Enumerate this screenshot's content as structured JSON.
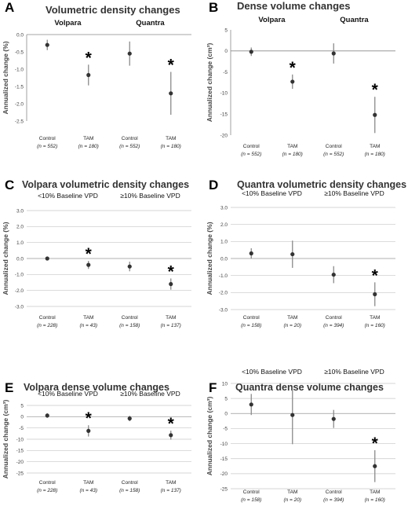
{
  "chart_data": [
    {
      "letter": "A",
      "title": "Volumetric density changes",
      "type": "scatter",
      "ylabel": "Annualized change (%)",
      "ylim": [
        -2.5,
        0
      ],
      "yticks": [
        "0.0",
        "-0.5",
        "-1.0",
        "-1.5",
        "-2.0",
        "-2.5"
      ],
      "grid": false,
      "group_labels": [
        "Volpara",
        "Quantra"
      ],
      "group_labels_bold": true,
      "categories": [
        "Control",
        "TAM",
        "Control",
        "TAM"
      ],
      "n_labels": [
        "(n = 552)",
        "(n = 180)",
        "(n = 552)",
        "(n = 180)"
      ],
      "values": [
        -0.3,
        -1.17,
        -0.55,
        -1.7
      ],
      "ci_low": [
        -0.45,
        -1.47,
        -0.9,
        -2.32
      ],
      "ci_high": [
        -0.15,
        -0.87,
        -0.2,
        -1.08
      ],
      "significant": [
        false,
        true,
        false,
        true
      ]
    },
    {
      "letter": "B",
      "title": "Dense volume changes",
      "type": "scatter",
      "ylabel": "Annualized change (cm³)",
      "ylim": [
        -20,
        5
      ],
      "yticks": [
        "5",
        "0",
        "-5",
        "-10",
        "-15",
        "-20"
      ],
      "grid": false,
      "group_labels": [
        "Volpara",
        "Quantra"
      ],
      "group_labels_bold": true,
      "categories": [
        "Control",
        "TAM",
        "Control",
        "TAM"
      ],
      "n_labels": [
        "(n = 552)",
        "(n = 180)",
        "(n = 552)",
        "(n = 180)"
      ],
      "values": [
        -0.2,
        -7.3,
        -0.6,
        -15.2
      ],
      "ci_low": [
        -1.2,
        -9.0,
        -3.0,
        -19.5
      ],
      "ci_high": [
        0.8,
        -5.6,
        1.8,
        -10.9
      ],
      "significant": [
        false,
        true,
        false,
        true
      ]
    },
    {
      "letter": "C",
      "title": "Volpara volumetric density changes",
      "type": "scatter",
      "ylabel": "Annualized change (%)",
      "ylim": [
        -3,
        3
      ],
      "yticks": [
        "3.0",
        "2.0",
        "1.0",
        "0.0",
        "-1.0",
        "-2.0",
        "-3.0"
      ],
      "grid": true,
      "group_labels": [
        "<10% Baseline VPD",
        "≥10% Baseline VPD"
      ],
      "group_labels_bold": false,
      "categories": [
        "Control",
        "TAM",
        "Control",
        "TAM"
      ],
      "n_labels": [
        "(n = 228)",
        "(n = 43)",
        "(n = 158)",
        "(n = 137)"
      ],
      "values": [
        0.0,
        -0.4,
        -0.5,
        -1.6
      ],
      "ci_low": [
        -0.05,
        -0.65,
        -0.8,
        -1.95
      ],
      "ci_high": [
        0.05,
        -0.15,
        -0.2,
        -1.25
      ],
      "significant": [
        false,
        true,
        false,
        true
      ]
    },
    {
      "letter": "D",
      "title": "Quantra volumetric density changes",
      "type": "scatter",
      "ylabel": "Annualized change (%)",
      "ylim": [
        -3,
        3
      ],
      "yticks": [
        "3.0",
        "2.0",
        "1.0",
        "0.0",
        "-1.0",
        "-2.0",
        "-3.0"
      ],
      "grid": true,
      "group_labels": [
        "<10% Baseline VPD",
        "≥10% Baseline VPD"
      ],
      "group_labels_bold": false,
      "categories": [
        "Control",
        "TAM",
        "Control",
        "TAM"
      ],
      "n_labels": [
        "(n = 158)",
        "(n = 20)",
        "(n = 394)",
        "(n = 160)"
      ],
      "values": [
        0.3,
        0.25,
        -0.95,
        -2.1
      ],
      "ci_low": [
        0.0,
        -0.55,
        -1.45,
        -2.8
      ],
      "ci_high": [
        0.6,
        1.05,
        -0.45,
        -1.4
      ],
      "significant": [
        false,
        false,
        false,
        true
      ]
    },
    {
      "letter": "E",
      "title": "Volpara dense volume changes",
      "type": "scatter",
      "ylabel": "Annualized change (cm³)",
      "ylim": [
        -25,
        5
      ],
      "yticks": [
        "5",
        "0",
        "-5",
        "-10",
        "-15",
        "-20",
        "-25"
      ],
      "grid": true,
      "group_labels": [
        "<10% Baseline VPD",
        "≥10% Baseline VPD"
      ],
      "group_labels_bold": false,
      "categories": [
        "Control",
        "TAM",
        "Control",
        "TAM"
      ],
      "n_labels": [
        "(n = 228)",
        "(n = 43)",
        "(n = 158)",
        "(n = 137)"
      ],
      "values": [
        0.5,
        -6.3,
        -0.8,
        -8.2
      ],
      "ci_low": [
        -0.5,
        -8.8,
        -2.0,
        -10.2
      ],
      "ci_high": [
        1.5,
        -3.8,
        0.4,
        -6.2
      ],
      "significant": [
        false,
        true,
        false,
        true
      ]
    },
    {
      "letter": "F",
      "title": "Quantra dense volume changes",
      "type": "scatter",
      "ylabel": "Annualized change (cm³)",
      "ylim": [
        -25,
        10
      ],
      "yticks": [
        "10",
        "5",
        "0",
        "-5",
        "-10",
        "-15",
        "-20",
        "-25"
      ],
      "grid": true,
      "group_labels": [
        "<10% Baseline VPD",
        "≥10% Baseline VPD"
      ],
      "group_labels_bold": false,
      "categories": [
        "Control",
        "TAM",
        "Control",
        "TAM"
      ],
      "n_labels": [
        "(n = 158)",
        "(n = 20)",
        "(n = 394)",
        "(n = 160)"
      ],
      "values": [
        3.0,
        -0.5,
        -1.8,
        -17.5
      ],
      "ci_low": [
        -0.5,
        -10.2,
        -4.8,
        -22.8
      ],
      "ci_high": [
        6.5,
        9.2,
        1.2,
        -12.2
      ],
      "significant": [
        false,
        false,
        false,
        true
      ]
    }
  ]
}
